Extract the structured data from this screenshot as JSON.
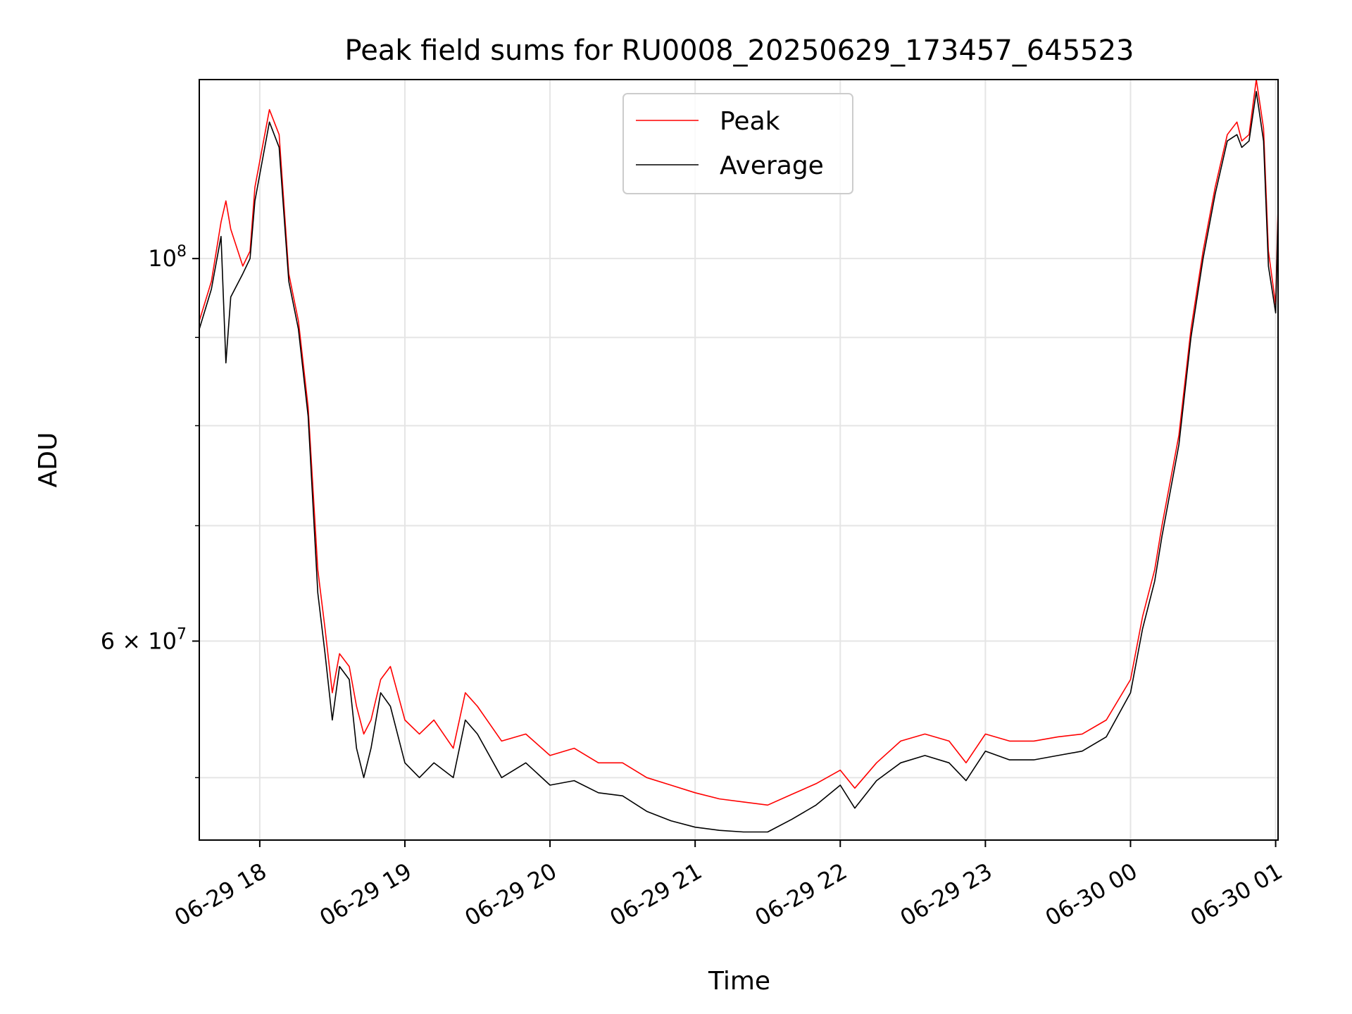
{
  "chart_data": {
    "type": "line",
    "title": "Peak field sums for RU0008_20250629_173457_645523",
    "xlabel": "Time",
    "ylabel": "ADU",
    "xlim": [
      "2025-06-29 17:35",
      "2025-06-30 01:01"
    ],
    "ylim": [
      46000000,
      127000000
    ],
    "yscale": "log",
    "grid": true,
    "legend_position": "top-center",
    "x_ticks": [
      "06-29 18",
      "06-29 19",
      "06-29 20",
      "06-29 21",
      "06-29 22",
      "06-29 23",
      "06-30 00",
      "06-30 01"
    ],
    "x_tick_times": [
      "2025-06-29 18:00",
      "2025-06-29 19:00",
      "2025-06-29 20:00",
      "2025-06-29 21:00",
      "2025-06-29 22:00",
      "2025-06-29 23:00",
      "2025-06-30 00:00",
      "2025-06-30 01:00"
    ],
    "y_major_ticks": [
      {
        "value": 100000000,
        "mantissa": "",
        "exp": "8"
      },
      {
        "value": 60000000,
        "mantissa": "6",
        "exp": "7"
      }
    ],
    "y_minor_ticks": [
      50000000,
      70000000,
      80000000,
      90000000
    ],
    "x": [
      "2025-06-29 17:35",
      "2025-06-29 17:40",
      "2025-06-29 17:44",
      "2025-06-29 17:46",
      "2025-06-29 17:48",
      "2025-06-29 17:53",
      "2025-06-29 17:56",
      "2025-06-29 17:58",
      "2025-06-29 18:04",
      "2025-06-29 18:08",
      "2025-06-29 18:12",
      "2025-06-29 18:16",
      "2025-06-29 18:20",
      "2025-06-29 18:24",
      "2025-06-29 18:27",
      "2025-06-29 18:30",
      "2025-06-29 18:33",
      "2025-06-29 18:37",
      "2025-06-29 18:40",
      "2025-06-29 18:43",
      "2025-06-29 18:46",
      "2025-06-29 18:50",
      "2025-06-29 18:54",
      "2025-06-29 19:00",
      "2025-06-29 19:06",
      "2025-06-29 19:12",
      "2025-06-29 19:20",
      "2025-06-29 19:25",
      "2025-06-29 19:30",
      "2025-06-29 19:40",
      "2025-06-29 19:50",
      "2025-06-29 20:00",
      "2025-06-29 20:10",
      "2025-06-29 20:20",
      "2025-06-29 20:30",
      "2025-06-29 20:40",
      "2025-06-29 20:50",
      "2025-06-29 21:00",
      "2025-06-29 21:10",
      "2025-06-29 21:20",
      "2025-06-29 21:30",
      "2025-06-29 21:40",
      "2025-06-29 21:50",
      "2025-06-29 22:00",
      "2025-06-29 22:06",
      "2025-06-29 22:15",
      "2025-06-29 22:25",
      "2025-06-29 22:35",
      "2025-06-29 22:45",
      "2025-06-29 22:52",
      "2025-06-29 23:00",
      "2025-06-29 23:10",
      "2025-06-29 23:20",
      "2025-06-29 23:30",
      "2025-06-29 23:40",
      "2025-06-29 23:50",
      "2025-06-30 00:00",
      "2025-06-30 00:05",
      "2025-06-30 00:10",
      "2025-06-30 00:13",
      "2025-06-30 00:20",
      "2025-06-30 00:25",
      "2025-06-30 00:30",
      "2025-06-30 00:35",
      "2025-06-30 00:40",
      "2025-06-30 00:44",
      "2025-06-30 00:46",
      "2025-06-30 00:49",
      "2025-06-30 00:52",
      "2025-06-30 00:55",
      "2025-06-30 00:57",
      "2025-06-30 01:00",
      "2025-06-30 01:01"
    ],
    "series": [
      {
        "name": "Peak",
        "color": "#ff0000",
        "values": [
          92000000,
          97000000,
          105000000,
          108000000,
          104000000,
          99000000,
          101000000,
          110000000,
          122000000,
          118000000,
          98000000,
          92000000,
          82000000,
          66000000,
          61000000,
          56000000,
          59000000,
          58000000,
          55000000,
          53000000,
          54000000,
          57000000,
          58000000,
          54000000,
          53000000,
          54000000,
          52000000,
          56000000,
          55000000,
          52500000,
          53000000,
          51500000,
          52000000,
          51000000,
          51000000,
          50000000,
          49500000,
          49000000,
          48600000,
          48400000,
          48200000,
          48900000,
          49600000,
          50500000,
          49300000,
          51000000,
          52500000,
          53000000,
          52500000,
          51000000,
          53000000,
          52500000,
          52500000,
          52800000,
          53000000,
          54000000,
          57000000,
          62000000,
          66000000,
          70000000,
          79000000,
          91000000,
          101000000,
          110000000,
          118000000,
          120000000,
          117000000,
          118000000,
          127000000,
          119000000,
          101000000,
          94000000,
          107000000
        ]
      },
      {
        "name": "Average",
        "color": "#000000",
        "values": [
          91000000,
          96000000,
          103000000,
          87000000,
          95000000,
          98000000,
          100000000,
          108000000,
          120000000,
          116000000,
          97000000,
          91000000,
          81000000,
          64000000,
          59000000,
          54000000,
          58000000,
          57000000,
          52000000,
          50000000,
          52000000,
          56000000,
          55000000,
          51000000,
          50000000,
          51000000,
          50000000,
          54000000,
          53000000,
          50000000,
          51000000,
          49500000,
          49800000,
          49000000,
          48800000,
          47800000,
          47200000,
          46800000,
          46600000,
          46500000,
          46500000,
          47300000,
          48200000,
          49500000,
          48000000,
          49800000,
          51000000,
          51500000,
          51000000,
          49800000,
          51800000,
          51200000,
          51200000,
          51500000,
          51800000,
          52800000,
          56000000,
          61000000,
          65000000,
          69000000,
          78000000,
          90000000,
          100000000,
          109000000,
          117000000,
          118000000,
          116000000,
          117000000,
          125000000,
          117000000,
          99000000,
          93000000,
          106000000
        ]
      }
    ]
  }
}
